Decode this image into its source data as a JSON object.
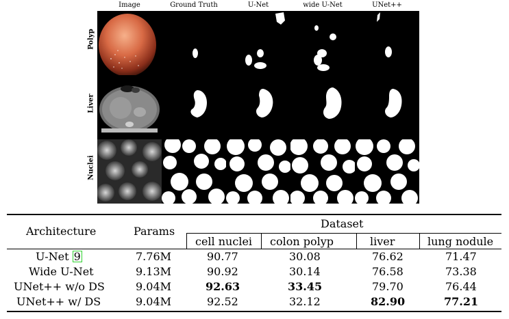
{
  "figure": {
    "columns": [
      "Image",
      "Ground Truth",
      "U-Net",
      "wide U-Net",
      "UNet++"
    ],
    "rows": [
      "Polyp",
      "Liver",
      "Nuclei"
    ]
  },
  "table": {
    "header": {
      "architecture": "Architecture",
      "params": "Params",
      "dataset": "Dataset",
      "datasets": [
        "cell nuclei",
        "colon polyp",
        "liver",
        "lung nodule"
      ]
    },
    "rows": [
      {
        "arch": "U-Net",
        "cite": "9",
        "params": "7.76M",
        "values": [
          "90.77",
          "30.08",
          "76.62",
          "71.47"
        ],
        "bold": [
          false,
          false,
          false,
          false
        ]
      },
      {
        "arch": "Wide U-Net",
        "cite": "",
        "params": "9.13M",
        "values": [
          "90.92",
          "30.14",
          "76.58",
          "73.38"
        ],
        "bold": [
          false,
          false,
          false,
          false
        ]
      },
      {
        "arch": "UNet++ w/o DS",
        "cite": "",
        "params": "9.04M",
        "values": [
          "92.63",
          "33.45",
          "79.70",
          "76.44"
        ],
        "bold": [
          true,
          true,
          false,
          false
        ]
      },
      {
        "arch": "UNet++ w/ DS",
        "cite": "",
        "params": "9.04M",
        "values": [
          "92.52",
          "32.12",
          "82.90",
          "77.21"
        ],
        "bold": [
          false,
          false,
          true,
          true
        ]
      }
    ]
  }
}
